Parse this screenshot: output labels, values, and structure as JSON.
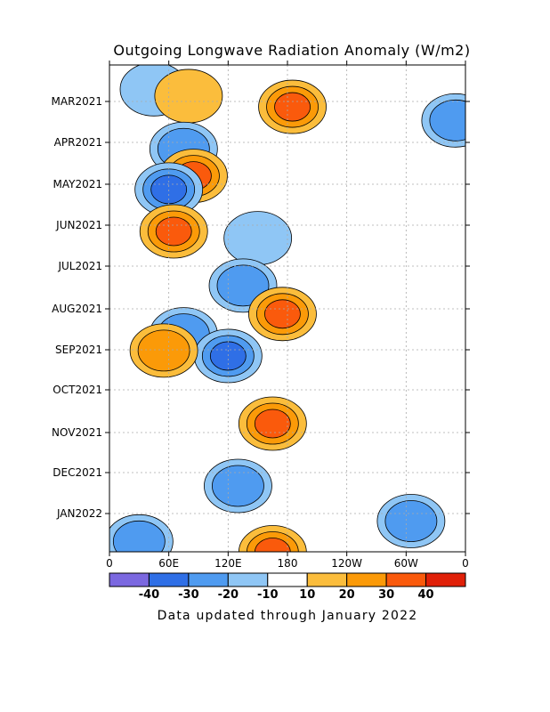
{
  "chart_data": {
    "type": "heatmap",
    "title": "Outgoing Longwave Radiation Anomaly (W/m2)",
    "footnote": "Data updated through January 2022",
    "x_ticks": [
      "0",
      "60E",
      "120E",
      "180",
      "120W",
      "60W",
      "0"
    ],
    "y_ticks": [
      "MAR2021",
      "APR2021",
      "MAY2021",
      "JUN2021",
      "JUL2021",
      "AUG2021",
      "SEP2021",
      "OCT2021",
      "NOV2021",
      "DEC2021",
      "JAN2022"
    ],
    "colorbar": {
      "labels": [
        "-40",
        "-30",
        "-20",
        "-10",
        "10",
        "20",
        "30",
        "40"
      ],
      "colors": [
        "#7b68e0",
        "#2f6fe6",
        "#4f9bf0",
        "#8fc6f5",
        "#ffffff",
        "#fbbd3c",
        "#fb9a08",
        "#fa5a0c",
        "#e02008"
      ]
    },
    "grid": true,
    "anomalies": [
      {
        "lon": 45,
        "date": "2021-02-20",
        "value": -15
      },
      {
        "lon": 80,
        "date": "2021-02-25",
        "value": 15
      },
      {
        "lon": 185,
        "date": "2021-03-05",
        "value": 30
      },
      {
        "lon": 350,
        "date": "2021-03-15",
        "value": -25
      },
      {
        "lon": 75,
        "date": "2021-04-05",
        "value": -25
      },
      {
        "lon": 85,
        "date": "2021-04-25",
        "value": 35
      },
      {
        "lon": 60,
        "date": "2021-05-05",
        "value": -35
      },
      {
        "lon": 65,
        "date": "2021-06-05",
        "value": 35
      },
      {
        "lon": 150,
        "date": "2021-06-10",
        "value": -15
      },
      {
        "lon": 135,
        "date": "2021-07-15",
        "value": -20
      },
      {
        "lon": 175,
        "date": "2021-08-05",
        "value": 30
      },
      {
        "lon": 75,
        "date": "2021-08-20",
        "value": -25
      },
      {
        "lon": 120,
        "date": "2021-09-05",
        "value": -30
      },
      {
        "lon": 55,
        "date": "2021-09-01",
        "value": 25
      },
      {
        "lon": 165,
        "date": "2021-10-25",
        "value": 35
      },
      {
        "lon": 130,
        "date": "2021-12-10",
        "value": -25
      },
      {
        "lon": 305,
        "date": "2022-01-05",
        "value": -20
      },
      {
        "lon": 30,
        "date": "2022-01-20",
        "value": -20
      },
      {
        "lon": 165,
        "date": "2022-01-28",
        "value": 30
      }
    ]
  }
}
